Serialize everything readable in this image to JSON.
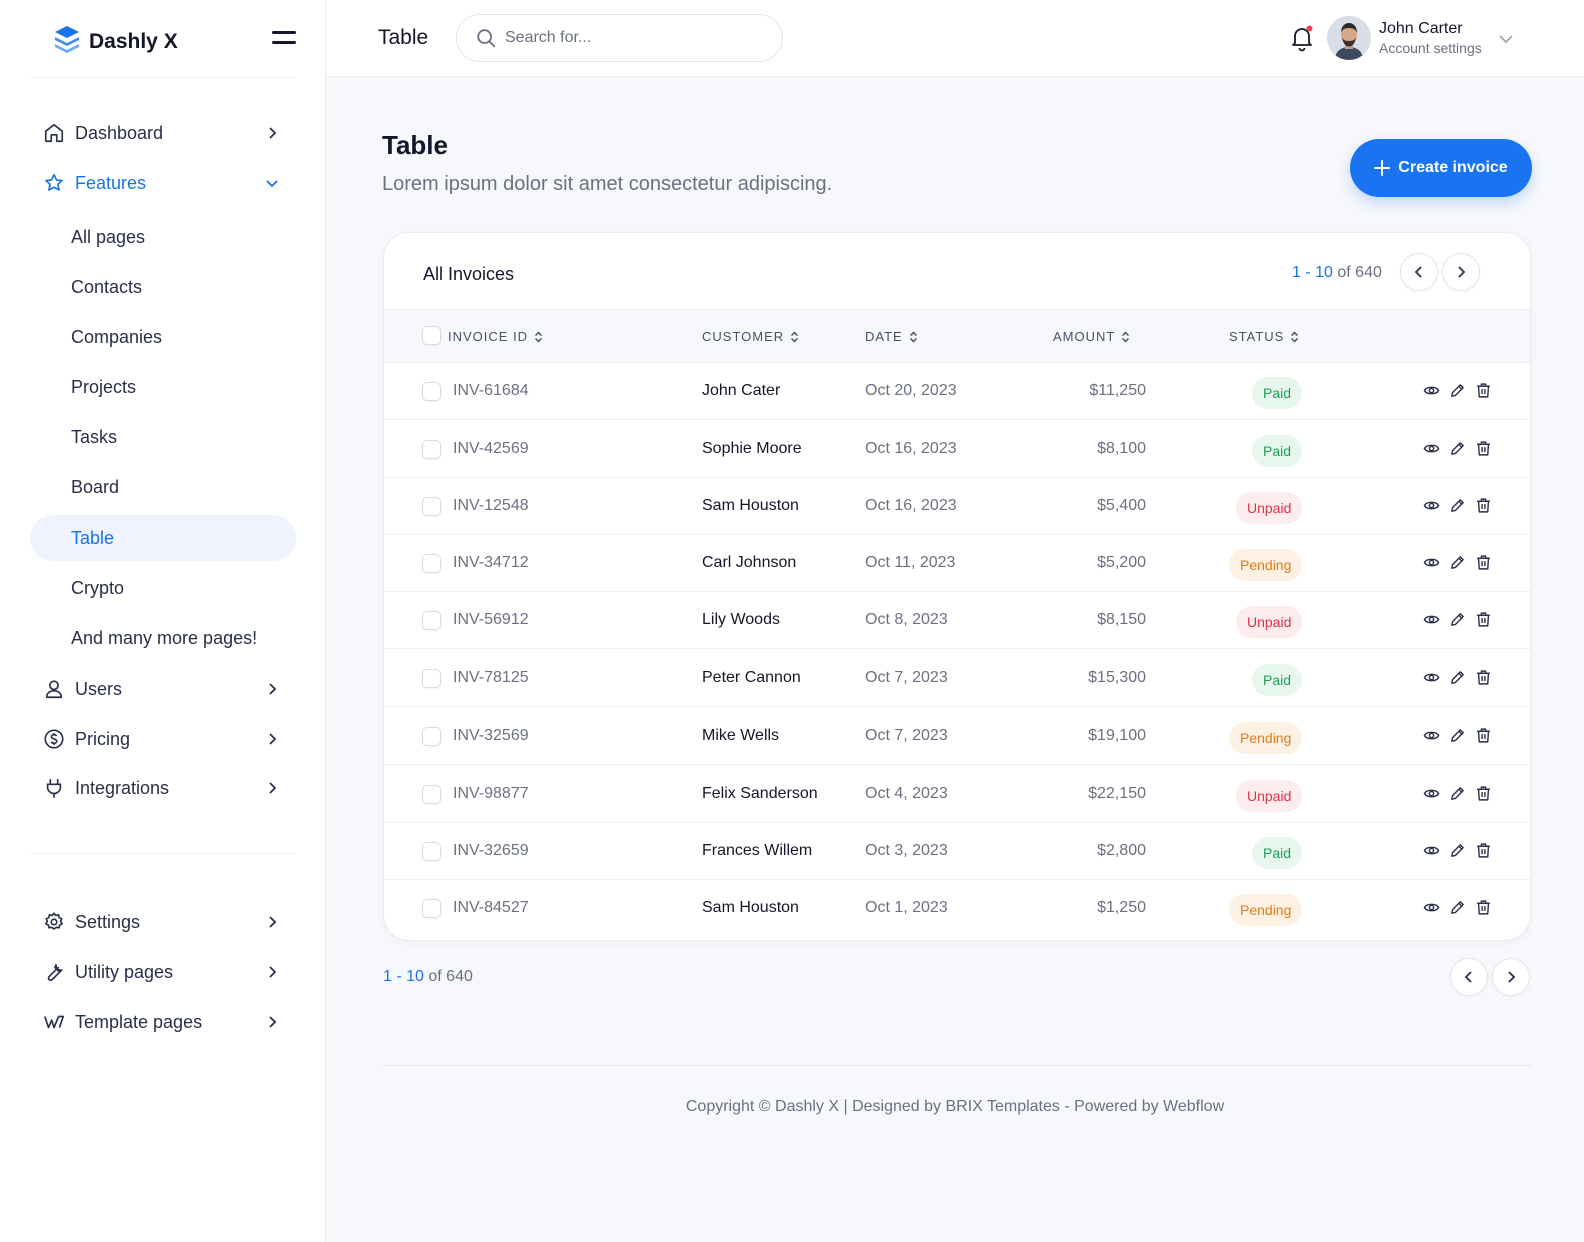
{
  "brand": {
    "name": "Dashly X"
  },
  "sidebar": {
    "items": [
      {
        "label": "Dashboard",
        "icon": "home-icon"
      },
      {
        "label": "Features",
        "icon": "star-icon"
      },
      {
        "label": "Users",
        "icon": "user-icon"
      },
      {
        "label": "Pricing",
        "icon": "dollar-icon"
      },
      {
        "label": "Integrations",
        "icon": "plug-icon"
      }
    ],
    "features_sub": [
      "All pages",
      "Contacts",
      "Companies",
      "Projects",
      "Tasks",
      "Board",
      "Table",
      "Crypto",
      "And many more pages!"
    ],
    "active_sub": "Table",
    "bottom_items": [
      {
        "label": "Settings",
        "icon": "gear-icon"
      },
      {
        "label": "Utility pages",
        "icon": "wrench-icon"
      },
      {
        "label": "Template pages",
        "icon": "webflow-icon"
      }
    ]
  },
  "header": {
    "title": "Table",
    "search_placeholder": "Search for...",
    "user_name": "John Carter",
    "user_sub": "Account settings"
  },
  "main": {
    "title": "Table",
    "subtitle": "Lorem ipsum dolor sit amet consectetur adipiscing.",
    "create_label": "Create invoice"
  },
  "table": {
    "title": "All Invoices",
    "pager_range": "1 - 10",
    "pager_of": "of 640",
    "columns": [
      "INVOICE ID",
      "CUSTOMER",
      "DATE",
      "AMOUNT",
      "STATUS"
    ],
    "rows": [
      {
        "id": "INV-61684",
        "customer": "John Cater",
        "date": "Oct 20, 2023",
        "amount": "$11,250",
        "status": "Paid"
      },
      {
        "id": "INV-42569",
        "customer": "Sophie Moore",
        "date": "Oct 16, 2023",
        "amount": "$8,100",
        "status": "Paid"
      },
      {
        "id": "INV-12548",
        "customer": "Sam Houston",
        "date": "Oct 16, 2023",
        "amount": "$5,400",
        "status": "Unpaid"
      },
      {
        "id": "INV-34712",
        "customer": "Carl Johnson",
        "date": "Oct 11, 2023",
        "amount": "$5,200",
        "status": "Pending"
      },
      {
        "id": "INV-56912",
        "customer": "Lily Woods",
        "date": "Oct 8, 2023",
        "amount": "$8,150",
        "status": "Unpaid"
      },
      {
        "id": "INV-78125",
        "customer": "Peter Cannon",
        "date": "Oct 7, 2023",
        "amount": "$15,300",
        "status": "Paid"
      },
      {
        "id": "INV-32569",
        "customer": "Mike Wells",
        "date": "Oct 7, 2023",
        "amount": "$19,100",
        "status": "Pending"
      },
      {
        "id": "INV-98877",
        "customer": "Felix Sanderson",
        "date": "Oct 4, 2023",
        "amount": "$22,150",
        "status": "Unpaid"
      },
      {
        "id": "INV-32659",
        "customer": "Frances Willem",
        "date": "Oct 3, 2023",
        "amount": "$2,800",
        "status": "Paid"
      },
      {
        "id": "INV-84527",
        "customer": "Sam Houston",
        "date": "Oct 1, 2023",
        "amount": "$1,250",
        "status": "Pending"
      }
    ]
  },
  "status_colors": {
    "Paid": {
      "bg": "#e8f7ee",
      "fg": "#1f9d57"
    },
    "Unpaid": {
      "bg": "#fdecee",
      "fg": "#d93445"
    },
    "Pending": {
      "bg": "#fdf1e4",
      "fg": "#e07b1a"
    }
  },
  "footer": {
    "copyright": "Copyright © Dashly X | Designed by BRIX Templates - Powered by Webflow"
  },
  "colors": {
    "accent": "#1a73e8",
    "button": "#1a73f0"
  }
}
